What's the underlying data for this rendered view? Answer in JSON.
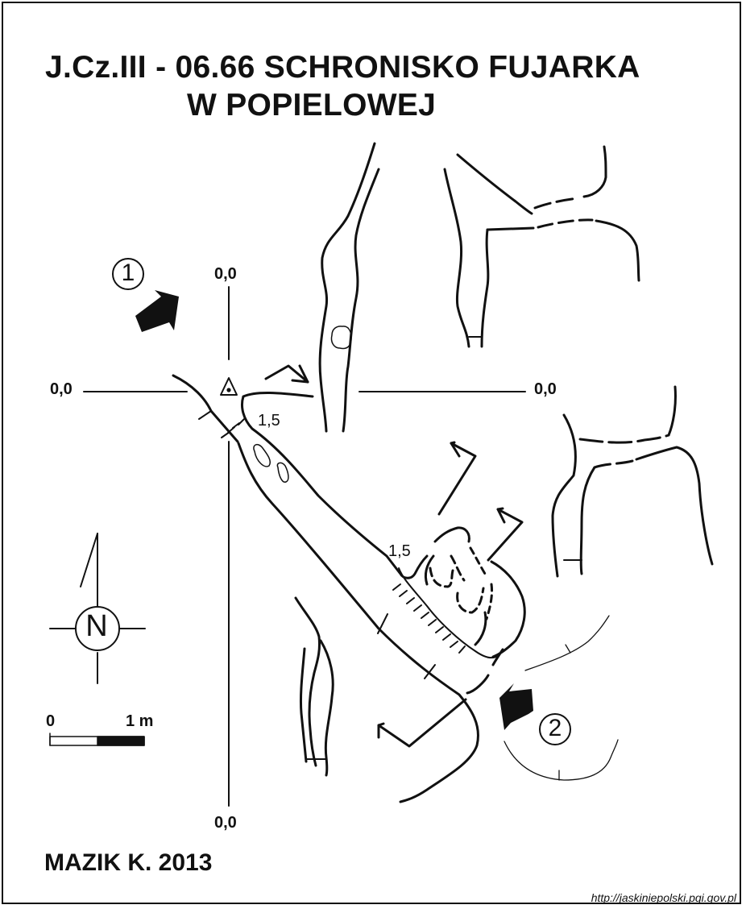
{
  "title": {
    "line1": "J.Cz.III - 06.66  SCHRONISKO FUJARKA",
    "line2": "W POPIELOWEJ"
  },
  "axis_labels": {
    "top": "0,0",
    "left": "0,0",
    "right": "0,0",
    "bottom": "0,0"
  },
  "depth_labels": [
    "1,5",
    "1,5"
  ],
  "entrances": [
    {
      "number": "1",
      "icon": "entrance-arrow-icon"
    },
    {
      "number": "2",
      "icon": "entrance-arrow-icon"
    }
  ],
  "north_arrow": {
    "letter": "N",
    "icon": "north-arrow-icon"
  },
  "scale_bar": {
    "start_label": "0",
    "end_label": "1 m"
  },
  "author": "MAZIK K. 2013",
  "source_url": "http://jaskiniepolski.pgi.gov.pl",
  "colors": {
    "ink": "#111111",
    "paper": "#ffffff"
  }
}
